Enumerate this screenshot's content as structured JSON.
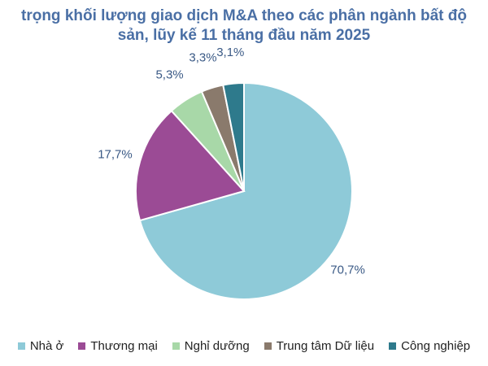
{
  "chart_data": {
    "type": "pie",
    "title_line1": "trọng khối lượng giao dịch M&A theo các phân ngành bất độ",
    "title_line2": "sản, lũy kế 11 tháng đầu năm 2025",
    "categories": [
      "Nhà ở",
      "Thương mại",
      "Nghỉ dưỡng",
      "Trung tâm Dữ liệu",
      "Công nghiệp"
    ],
    "values": [
      70.7,
      17.7,
      5.3,
      3.3,
      3.1
    ],
    "data_labels": [
      "70,7%",
      "17,7%",
      "5,3%",
      "3,3%",
      "3,1%"
    ],
    "colors": [
      "#8ecad8",
      "#9b4b95",
      "#a8d8a8",
      "#8a7a6c",
      "#2e7a8c"
    ],
    "legend_position": "bottom"
  }
}
